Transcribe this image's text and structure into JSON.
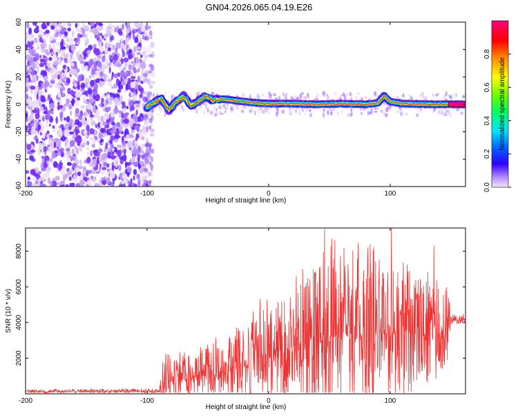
{
  "title": "GN04.2026.065.04.19.E26",
  "chart_data": [
    {
      "type": "heatmap",
      "xlabel": "Height of straight line (km)",
      "ylabel": "Frequency (Hz)",
      "xlim": [
        -200,
        162
      ],
      "ylim": [
        -60,
        60
      ],
      "xticks": [
        -200,
        -100,
        0,
        100
      ],
      "yticks": [
        -60,
        -40,
        -20,
        0,
        20,
        40,
        60
      ],
      "colorbar": {
        "label": "Normalized spectral amplitude",
        "range": [
          0,
          1
        ],
        "ticks": [
          0.0,
          0.2,
          0.4,
          0.6,
          0.8
        ]
      },
      "noise_region_x": [
        -200,
        -95
      ],
      "ridge": [
        {
          "x": -100,
          "y": -2
        },
        {
          "x": -95,
          "y": 1
        },
        {
          "x": -88,
          "y": 4
        },
        {
          "x": -82,
          "y": -4
        },
        {
          "x": -76,
          "y": 2
        },
        {
          "x": -70,
          "y": 6
        },
        {
          "x": -64,
          "y": -1
        },
        {
          "x": -58,
          "y": 2
        },
        {
          "x": -52,
          "y": 6
        },
        {
          "x": -46,
          "y": 3
        },
        {
          "x": -38,
          "y": 4
        },
        {
          "x": -30,
          "y": 3
        },
        {
          "x": -20,
          "y": 2
        },
        {
          "x": -10,
          "y": 1
        },
        {
          "x": 0,
          "y": 0.5
        },
        {
          "x": 20,
          "y": 0.5
        },
        {
          "x": 40,
          "y": 0
        },
        {
          "x": 60,
          "y": 0.5
        },
        {
          "x": 80,
          "y": 0
        },
        {
          "x": 90,
          "y": 1
        },
        {
          "x": 95,
          "y": 6
        },
        {
          "x": 100,
          "y": 2
        },
        {
          "x": 110,
          "y": 0.5
        },
        {
          "x": 130,
          "y": 0
        },
        {
          "x": 162,
          "y": 0
        }
      ]
    },
    {
      "type": "line",
      "xlabel": "Height of straight line (km)",
      "ylabel": "SNR (10 * v/v)",
      "xlim": [
        -200,
        162
      ],
      "ylim": [
        0,
        9300
      ],
      "xticks": [
        -200,
        -100,
        0,
        100
      ],
      "yticks": [
        2000,
        4000,
        6000,
        8000
      ],
      "color": "#ee3333",
      "envelope": [
        {
          "x": -200,
          "base": 150,
          "amp": 120
        },
        {
          "x": -90,
          "base": 150,
          "amp": 140
        },
        {
          "x": -87,
          "base": 700,
          "amp": 1400
        },
        {
          "x": -60,
          "base": 900,
          "amp": 1500
        },
        {
          "x": -30,
          "base": 1300,
          "amp": 2200
        },
        {
          "x": -5,
          "base": 2000,
          "amp": 2800
        },
        {
          "x": 20,
          "base": 2600,
          "amp": 4000
        },
        {
          "x": 50,
          "base": 3200,
          "amp": 5000
        },
        {
          "x": 80,
          "base": 3300,
          "amp": 4800
        },
        {
          "x": 110,
          "base": 3300,
          "amp": 3800
        },
        {
          "x": 148,
          "base": 3500,
          "amp": 2600
        },
        {
          "x": 150,
          "base": 4100,
          "amp": 300
        },
        {
          "x": 162,
          "base": 4200,
          "amp": 300
        }
      ],
      "peaks": [
        {
          "x": 46,
          "y": 9250
        },
        {
          "x": 101,
          "y": 9300
        },
        {
          "x": 52,
          "y": 8700
        },
        {
          "x": 62,
          "y": 8200
        },
        {
          "x": 136,
          "y": 8300
        },
        {
          "x": 73,
          "y": 7600
        },
        {
          "x": 86,
          "y": 8050
        },
        {
          "x": 116,
          "y": 6900
        },
        {
          "x": 28,
          "y": 7000
        },
        {
          "x": -7,
          "y": 5300
        },
        {
          "x": -82,
          "y": 2200
        }
      ]
    }
  ]
}
